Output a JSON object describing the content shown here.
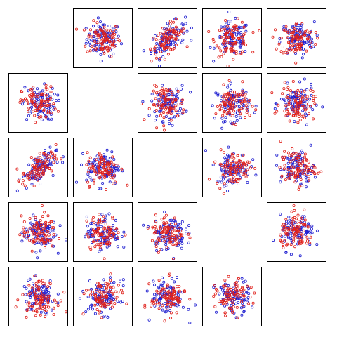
{
  "chart_data": {
    "type": "scatter",
    "title": "",
    "layout": "scatterplot-matrix",
    "variables": 5,
    "diagonal": "empty",
    "marker": "open-circle",
    "grid": false,
    "legend": "none",
    "series_colors": [
      "#1f1fd0",
      "#e0201a"
    ],
    "points_per_series": 90,
    "range": [
      -3.2,
      3.2
    ],
    "panels": [
      {
        "row": 0,
        "col": 1,
        "correlation": 0.0
      },
      {
        "row": 0,
        "col": 2,
        "correlation": 0.55
      },
      {
        "row": 0,
        "col": 3,
        "correlation": 0.05
      },
      {
        "row": 0,
        "col": 4,
        "correlation": 0.0
      },
      {
        "row": 1,
        "col": 0,
        "correlation": 0.0
      },
      {
        "row": 1,
        "col": 2,
        "correlation": 0.05
      },
      {
        "row": 1,
        "col": 3,
        "correlation": 0.0
      },
      {
        "row": 1,
        "col": 4,
        "correlation": 0.0
      },
      {
        "row": 2,
        "col": 0,
        "correlation": 0.55
      },
      {
        "row": 2,
        "col": 1,
        "correlation": 0.05
      },
      {
        "row": 2,
        "col": 3,
        "correlation": 0.0
      },
      {
        "row": 2,
        "col": 4,
        "correlation": 0.0
      },
      {
        "row": 3,
        "col": 0,
        "correlation": 0.05
      },
      {
        "row": 3,
        "col": 1,
        "correlation": 0.0
      },
      {
        "row": 3,
        "col": 2,
        "correlation": 0.0
      },
      {
        "row": 3,
        "col": 4,
        "correlation": 0.0
      },
      {
        "row": 4,
        "col": 0,
        "correlation": 0.0
      },
      {
        "row": 4,
        "col": 1,
        "correlation": 0.0
      },
      {
        "row": 4,
        "col": 2,
        "correlation": 0.0
      },
      {
        "row": 4,
        "col": 3,
        "correlation": 0.0
      }
    ]
  }
}
